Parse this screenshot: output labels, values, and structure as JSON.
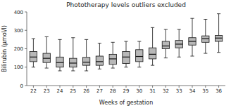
{
  "chart_data": {
    "type": "box",
    "title": "Phototherapy levels outliers excluded",
    "x_label": "Weeks of gestation",
    "y_label": "Bilirubin (μmol/l)",
    "categories": [
      22,
      23,
      24,
      25,
      26,
      27,
      28,
      29,
      30,
      31,
      32,
      33,
      34,
      35,
      36
    ],
    "whislo": [
      100,
      95,
      80,
      80,
      80,
      90,
      95,
      100,
      100,
      110,
      150,
      155,
      160,
      175,
      180
    ],
    "q1": [
      130,
      125,
      100,
      100,
      110,
      110,
      115,
      120,
      130,
      145,
      200,
      205,
      220,
      235,
      240
    ],
    "med": [
      155,
      148,
      125,
      122,
      127,
      130,
      145,
      155,
      158,
      170,
      215,
      225,
      240,
      255,
      258
    ],
    "q3": [
      185,
      175,
      155,
      148,
      153,
      160,
      170,
      185,
      195,
      205,
      240,
      245,
      260,
      270,
      272
    ],
    "whishi": [
      255,
      265,
      250,
      260,
      250,
      230,
      235,
      240,
      240,
      315,
      305,
      305,
      365,
      360,
      390
    ],
    "color": "#b8b8b8",
    "ylim": [
      0,
      400
    ],
    "yticks": [
      0,
      100,
      200,
      300,
      400
    ],
    "grid": false
  }
}
